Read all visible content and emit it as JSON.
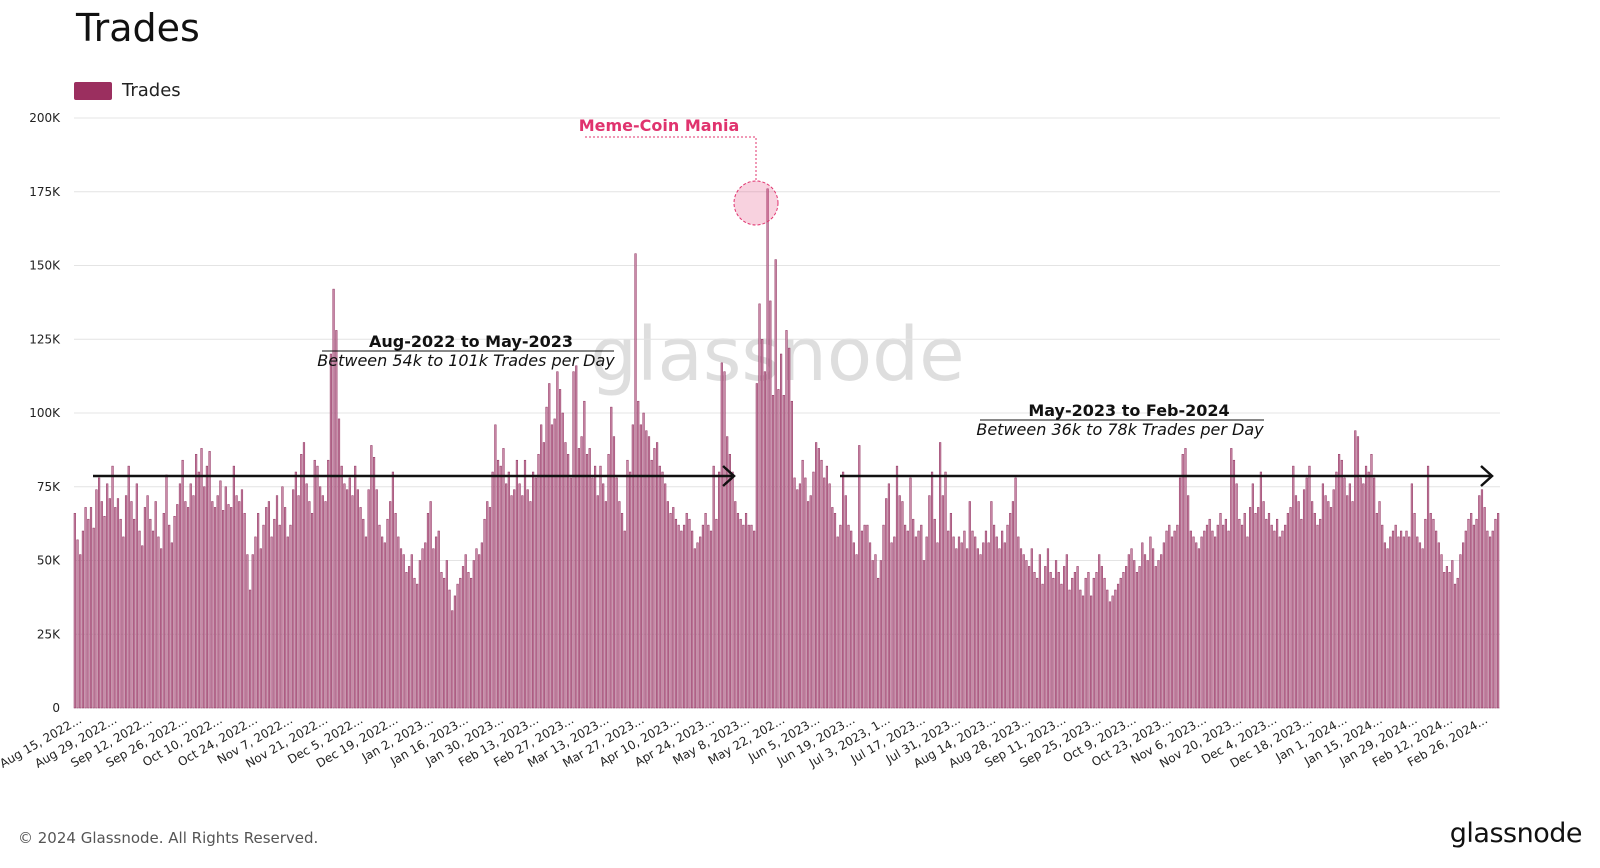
{
  "header": {
    "title": "Trades"
  },
  "legend": {
    "label": "Trades"
  },
  "footer": {
    "copyright": "© 2024 Glassnode. All Rights Reserved.",
    "brand": "glassnode"
  },
  "watermark": "glassnode",
  "colors": {
    "bar_fill": "#c98aa8",
    "bar_stroke": "#8e2e5c",
    "legend_swatch": "#9b2f5f",
    "highlight": "#e0336e",
    "grid": "#e4e4e4",
    "arrow": "#111111"
  },
  "annotations": {
    "peak": {
      "label": "Meme-Coin Mania",
      "value": 176000
    },
    "range1": {
      "title": "Aug-2022 to May-2023",
      "subtitle": "Between 54k to 101k Trades per Day"
    },
    "range2": {
      "title": "May-2023 to Feb-2024",
      "subtitle": "Between 36k to 78k Trades per Day"
    }
  },
  "chart_data": {
    "type": "bar",
    "title": "Trades",
    "ylim": [
      0,
      200000
    ],
    "yticks": [
      {
        "value": 0,
        "label": "0"
      },
      {
        "value": 25000,
        "label": "25K"
      },
      {
        "value": 50000,
        "label": "50K"
      },
      {
        "value": 75000,
        "label": "75K"
      },
      {
        "value": 100000,
        "label": "100K"
      },
      {
        "value": 125000,
        "label": "125K"
      },
      {
        "value": 150000,
        "label": "150K"
      },
      {
        "value": 175000,
        "label": "175K"
      },
      {
        "value": 200000,
        "label": "200K"
      }
    ],
    "grid": true,
    "legend_position": "top-left",
    "x_start": "2022-08-14",
    "x_end": "2024-03-04",
    "xtick_labels": [
      "Aug 15, 2022...",
      "Aug 29, 2022...",
      "Sep 12, 2022...",
      "Sep 26, 2022...",
      "Oct 10, 2022...",
      "Oct 24, 2022...",
      "Nov 7, 2022...",
      "Nov 21, 2022...",
      "Dec 5, 2022...",
      "Dec 19, 2022...",
      "Jan 2, 2023...",
      "Jan 16, 2023...",
      "Jan 30, 2023...",
      "Feb 13, 2023...",
      "Feb 27, 2023...",
      "Mar 13, 2023...",
      "Mar 27, 2023...",
      "Apr 10, 2023...",
      "Apr 24, 2023...",
      "May 8, 2023...",
      "May 22, 202...",
      "Jun 5, 2023...",
      "Jun 19, 2023...",
      "Jul 3, 2023, 1...",
      "Jul 17, 2023...",
      "Jul 31, 2023...",
      "Aug 14, 2023...",
      "Aug 28, 2023...",
      "Sep 11, 2023...",
      "Sep 25, 2023...",
      "Oct 9, 2023...",
      "Oct 23, 2023...",
      "Nov 6, 2023...",
      "Nov 20, 2023...",
      "Dec 4, 2023...",
      "Dec 18, 2023...",
      "Jan 1, 2024...",
      "Jan 15, 2024...",
      "Jan 29, 2024...",
      "Feb 12, 2024...",
      "Feb 26, 2024..."
    ],
    "series": [
      {
        "name": "Trades",
        "values": [
          66000,
          57000,
          52000,
          60000,
          68000,
          64000,
          68000,
          61000,
          74000,
          78000,
          70000,
          65000,
          76000,
          71000,
          82000,
          68000,
          71000,
          64000,
          58000,
          72000,
          82000,
          70000,
          64000,
          76000,
          60000,
          55000,
          68000,
          72000,
          64000,
          60000,
          70000,
          58000,
          54000,
          66000,
          79000,
          62000,
          56000,
          65000,
          69000,
          76000,
          84000,
          70000,
          68000,
          76000,
          72000,
          86000,
          80000,
          88000,
          75000,
          82000,
          87000,
          70000,
          68000,
          72000,
          77000,
          67000,
          75000,
          69000,
          68000,
          82000,
          72000,
          70000,
          74000,
          66000,
          52000,
          40000,
          52000,
          58000,
          66000,
          54000,
          62000,
          68000,
          70000,
          58000,
          64000,
          72000,
          62000,
          75000,
          68000,
          58000,
          62000,
          74000,
          80000,
          72000,
          86000,
          90000,
          76000,
          70000,
          66000,
          84000,
          82000,
          75000,
          72000,
          70000,
          84000,
          120000,
          142000,
          128000,
          98000,
          82000,
          76000,
          74000,
          78000,
          72000,
          82000,
          74000,
          68000,
          64000,
          58000,
          74000,
          89000,
          85000,
          74000,
          62000,
          58000,
          56000,
          64000,
          70000,
          80000,
          66000,
          58000,
          54000,
          52000,
          46000,
          48000,
          52000,
          44000,
          42000,
          50000,
          54000,
          56000,
          66000,
          70000,
          54000,
          58000,
          60000,
          46000,
          44000,
          50000,
          40000,
          33000,
          38000,
          42000,
          44000,
          48000,
          52000,
          46000,
          44000,
          50000,
          54000,
          52000,
          56000,
          64000,
          70000,
          68000,
          80000,
          96000,
          84000,
          82000,
          88000,
          76000,
          80000,
          72000,
          74000,
          84000,
          76000,
          72000,
          84000,
          74000,
          70000,
          80000,
          78000,
          86000,
          96000,
          90000,
          102000,
          110000,
          96000,
          98000,
          114000,
          108000,
          100000,
          90000,
          86000,
          78000,
          114000,
          116000,
          88000,
          92000,
          104000,
          86000,
          88000,
          78000,
          82000,
          72000,
          82000,
          76000,
          70000,
          86000,
          102000,
          92000,
          78000,
          70000,
          66000,
          60000,
          84000,
          80000,
          96000,
          154000,
          104000,
          96000,
          100000,
          94000,
          92000,
          84000,
          88000,
          90000,
          82000,
          80000,
          76000,
          70000,
          66000,
          68000,
          64000,
          62000,
          60000,
          62000,
          66000,
          64000,
          60000,
          54000,
          56000,
          58000,
          62000,
          66000,
          62000,
          60000,
          82000,
          64000,
          80000,
          117000,
          114000,
          92000,
          86000,
          80000,
          70000,
          66000,
          64000,
          62000,
          66000,
          62000,
          62000,
          60000,
          110000,
          137000,
          125000,
          114000,
          176000,
          138000,
          106000,
          152000,
          108000,
          120000,
          106000,
          128000,
          122000,
          104000,
          78000,
          74000,
          76000,
          84000,
          78000,
          70000,
          72000,
          80000,
          90000,
          88000,
          84000,
          78000,
          82000,
          76000,
          68000,
          66000,
          58000,
          62000,
          80000,
          72000,
          62000,
          60000,
          56000,
          52000,
          89000,
          60000,
          62000,
          62000,
          56000,
          50000,
          52000,
          44000,
          50000,
          62000,
          71000,
          76000,
          56000,
          58000,
          82000,
          72000,
          70000,
          62000,
          60000,
          78000,
          64000,
          58000,
          60000,
          62000,
          50000,
          58000,
          72000,
          80000,
          64000,
          56000,
          90000,
          72000,
          80000,
          60000,
          66000,
          58000,
          54000,
          58000,
          56000,
          60000,
          54000,
          70000,
          60000,
          58000,
          54000,
          52000,
          56000,
          60000,
          56000,
          70000,
          62000,
          58000,
          54000,
          60000,
          56000,
          62000,
          66000,
          70000,
          78000,
          58000,
          54000,
          52000,
          50000,
          48000,
          54000,
          46000,
          44000,
          52000,
          42000,
          48000,
          54000,
          46000,
          44000,
          50000,
          46000,
          42000,
          48000,
          52000,
          40000,
          44000,
          46000,
          48000,
          40000,
          38000,
          44000,
          46000,
          38000,
          44000,
          46000,
          52000,
          48000,
          44000,
          40000,
          36000,
          38000,
          40000,
          42000,
          44000,
          46000,
          48000,
          52000,
          54000,
          50000,
          46000,
          48000,
          56000,
          52000,
          50000,
          58000,
          54000,
          48000,
          50000,
          52000,
          56000,
          60000,
          62000,
          58000,
          60000,
          62000,
          78000,
          86000,
          88000,
          72000,
          60000,
          58000,
          56000,
          54000,
          58000,
          60000,
          62000,
          64000,
          60000,
          58000,
          62000,
          66000,
          62000,
          64000,
          60000,
          88000,
          84000,
          76000,
          64000,
          62000,
          66000,
          58000,
          68000,
          76000,
          66000,
          68000,
          80000,
          70000,
          64000,
          66000,
          62000,
          60000,
          64000,
          58000,
          60000,
          62000,
          66000,
          68000,
          82000,
          72000,
          70000,
          64000,
          74000,
          78000,
          82000,
          70000,
          66000,
          62000,
          64000,
          76000,
          72000,
          70000,
          68000,
          74000,
          80000,
          86000,
          84000,
          78000,
          72000,
          76000,
          70000,
          94000,
          92000,
          78000,
          76000,
          82000,
          80000,
          86000,
          78000,
          66000,
          70000,
          62000,
          56000,
          54000,
          58000,
          60000,
          62000,
          58000,
          60000,
          58000,
          60000,
          58000,
          76000,
          66000,
          58000,
          56000,
          54000,
          64000,
          82000,
          66000,
          64000,
          60000,
          56000,
          52000,
          46000,
          48000,
          46000,
          50000,
          42000,
          44000,
          52000,
          56000,
          60000,
          64000,
          66000,
          62000,
          64000,
          72000,
          74000,
          68000,
          60000,
          58000,
          60000,
          64000,
          66000
        ]
      }
    ]
  }
}
